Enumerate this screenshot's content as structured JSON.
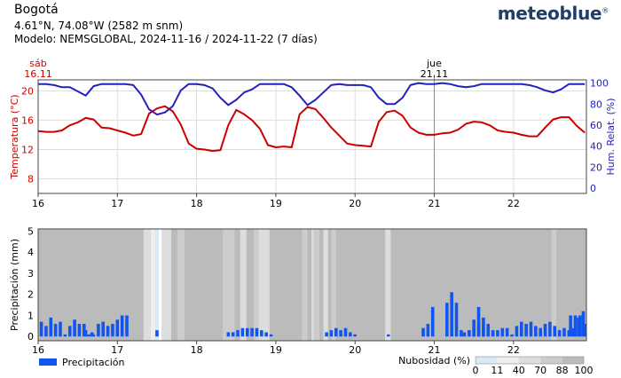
{
  "header": {
    "location": "Bogotá",
    "coords": "4.61°N, 74.08°W (2582 m snm)",
    "model": "Modelo: NEMSGLOBAL, 2024-11-16 / 2024-11-22 (7 días)",
    "brand": "meteoblue",
    "brand_mark": "®"
  },
  "colors": {
    "temperature": "#cc0000",
    "humidity": "#2222bb",
    "precipitation": "#1155ee",
    "cloud_base": "#bbbbbb"
  },
  "chart_data": [
    {
      "type": "line",
      "day_markers": [
        {
          "day_name": "sáb",
          "date": "16.11",
          "x": 16
        },
        {
          "day_name": "jue",
          "date": "21.11",
          "x": 21
        }
      ],
      "x": [
        16.0,
        16.1,
        16.2,
        16.3,
        16.4,
        16.5,
        16.6,
        16.7,
        16.8,
        16.9,
        17.0,
        17.1,
        17.2,
        17.3,
        17.4,
        17.5,
        17.6,
        17.7,
        17.8,
        17.9,
        18.0,
        18.1,
        18.2,
        18.3,
        18.4,
        18.5,
        18.6,
        18.7,
        18.8,
        18.9,
        19.0,
        19.1,
        19.2,
        19.3,
        19.4,
        19.5,
        19.6,
        19.7,
        19.8,
        19.9,
        20.0,
        20.1,
        20.2,
        20.3,
        20.4,
        20.5,
        20.6,
        20.7,
        20.8,
        20.9,
        21.0,
        21.1,
        21.2,
        21.3,
        21.4,
        21.5,
        21.6,
        21.7,
        21.8,
        21.9,
        22.0,
        22.1,
        22.2,
        22.3,
        22.4,
        22.5,
        22.6,
        22.7,
        22.8,
        22.9
      ],
      "series": [
        {
          "name": "Temperatura (°C)",
          "axis": "left",
          "values": [
            14.5,
            14.4,
            14.4,
            14.6,
            15.3,
            15.7,
            16.3,
            16.1,
            15.0,
            14.9,
            14.6,
            14.3,
            13.9,
            14.1,
            16.9,
            17.6,
            17.9,
            17.2,
            15.4,
            12.8,
            12.1,
            12.0,
            11.8,
            11.9,
            15.3,
            17.4,
            16.8,
            16.0,
            14.8,
            12.6,
            12.3,
            12.4,
            12.3,
            16.8,
            17.8,
            17.5,
            16.3,
            15.0,
            13.9,
            12.8,
            12.6,
            12.5,
            12.4,
            15.8,
            17.1,
            17.3,
            16.6,
            15.0,
            14.3,
            14.0,
            14.0,
            14.2,
            14.3,
            14.7,
            15.5,
            15.8,
            15.7,
            15.3,
            14.6,
            14.4,
            14.3,
            14.0,
            13.8,
            13.8,
            15.0,
            16.1,
            16.4,
            16.4,
            15.2,
            14.3
          ]
        },
        {
          "name": "Hum. Relat. (%)",
          "axis": "right",
          "values": [
            99,
            99,
            98,
            96,
            96,
            92,
            88,
            97,
            99,
            99,
            99,
            99,
            98,
            89,
            75,
            70,
            72,
            78,
            93,
            99,
            99,
            98,
            95,
            86,
            79,
            84,
            91,
            94,
            99,
            99,
            99,
            99,
            96,
            88,
            79,
            84,
            91,
            98,
            99,
            98,
            98,
            98,
            96,
            86,
            80,
            80,
            86,
            98,
            100,
            99,
            99,
            100,
            99,
            97,
            96,
            97,
            99,
            99,
            99,
            99,
            99,
            99,
            98,
            96,
            93,
            91,
            94,
            99,
            99,
            99
          ]
        }
      ],
      "xlim": [
        16,
        22.92
      ],
      "x_ticks": [
        16,
        17,
        18,
        19,
        20,
        21,
        22
      ],
      "y_left": {
        "label": "Temperatura (°C)",
        "lim": [
          6,
          21.5
        ],
        "ticks": [
          8,
          12,
          16,
          20
        ]
      },
      "y_right": {
        "label": "Hum. Relat. (%)",
        "lim": [
          -5,
          103
        ],
        "ticks": [
          0,
          20,
          40,
          60,
          80,
          100
        ]
      }
    },
    {
      "type": "bar",
      "x": [
        16.04,
        16.1,
        16.16,
        16.22,
        16.28,
        16.34,
        16.4,
        16.46,
        16.52,
        16.58,
        16.64,
        16.7,
        16.76,
        16.82,
        16.88,
        16.94,
        17.0,
        17.06,
        17.12,
        18.4,
        18.46,
        18.52,
        18.58,
        18.64,
        18.7,
        18.76,
        18.82,
        18.88,
        18.94,
        19.64,
        19.7,
        19.76,
        19.82,
        19.88,
        19.94,
        20.0,
        20.42,
        20.86,
        20.92,
        20.98,
        21.38,
        21.44,
        21.5,
        21.56,
        21.62,
        21.68,
        21.74,
        21.8,
        21.86,
        21.92,
        21.98,
        22.04,
        22.1,
        22.16,
        22.22,
        22.28,
        22.34,
        22.4,
        22.46,
        22.52,
        22.58,
        22.64,
        22.7,
        22.76,
        22.82,
        22.88,
        22.94,
        23.0,
        23.06
      ],
      "values": [
        0.7,
        0.5,
        0.9,
        0.6,
        0.7,
        0.1,
        0.5,
        0.8,
        0.6,
        0.6,
        0.1,
        0.1,
        0.6,
        0.7,
        0.5,
        0.6,
        0.8,
        1.0,
        1.0,
        0.2,
        0.2,
        0.3,
        0.4,
        0.4,
        0.4,
        0.4,
        0.3,
        0.2,
        0.1,
        0.2,
        0.3,
        0.4,
        0.3,
        0.4,
        0.2,
        0.1,
        0.1,
        0.4,
        0.6,
        1.4,
        0.2,
        0.3,
        0.8,
        1.4,
        0.9,
        0.6,
        0.3,
        0.3,
        0.4,
        0.4,
        0.1,
        0.5,
        0.7,
        0.6,
        0.7,
        0.5,
        0.4,
        0.6,
        0.7,
        0.5,
        0.3,
        0.4,
        0.3,
        0.4,
        0.9,
        1.2,
        0.5,
        0.2,
        0.3
      ],
      "extra_bars": {
        "x": [
          16.6,
          16.68,
          17.5,
          21.16,
          21.22,
          21.28,
          21.34,
          21.5,
          21.56,
          21.62,
          22.72,
          22.78,
          22.84,
          22.9
        ],
        "values": [
          0.3,
          0.2,
          0.3,
          1.6,
          2.1,
          1.6,
          0.3,
          0.4,
          0.6,
          0.3,
          1.0,
          1.0,
          1.0,
          0.6
        ]
      },
      "cloud_bands": [
        {
          "x0": 17.33,
          "x1": 17.42,
          "cover": 70
        },
        {
          "x0": 17.42,
          "x1": 17.48,
          "cover": 40
        },
        {
          "x0": 17.48,
          "x1": 17.52,
          "cover": 11
        },
        {
          "x0": 17.52,
          "x1": 17.56,
          "cover": 0
        },
        {
          "x0": 17.56,
          "x1": 17.68,
          "cover": 70
        },
        {
          "x0": 17.76,
          "x1": 17.85,
          "cover": 88
        },
        {
          "x0": 18.33,
          "x1": 18.48,
          "cover": 88
        },
        {
          "x0": 18.55,
          "x1": 18.63,
          "cover": 70
        },
        {
          "x0": 18.72,
          "x1": 18.78,
          "cover": 88
        },
        {
          "x0": 18.78,
          "x1": 18.92,
          "cover": 70
        },
        {
          "x0": 19.33,
          "x1": 19.4,
          "cover": 88
        },
        {
          "x0": 19.45,
          "x1": 19.48,
          "cover": 70
        },
        {
          "x0": 19.48,
          "x1": 19.55,
          "cover": 88
        },
        {
          "x0": 19.6,
          "x1": 19.66,
          "cover": 70
        },
        {
          "x0": 19.7,
          "x1": 19.76,
          "cover": 88
        },
        {
          "x0": 20.38,
          "x1": 20.45,
          "cover": 70
        },
        {
          "x0": 22.48,
          "x1": 22.54,
          "cover": 88
        }
      ],
      "xlim": [
        16,
        22.92
      ],
      "x_ticks": [
        16,
        17,
        18,
        19,
        20,
        21,
        22
      ],
      "ylabel": "Precipitación (mm)",
      "ylim": [
        -0.2,
        5.1
      ],
      "y_ticks": [
        0,
        1,
        2,
        3,
        4,
        5
      ],
      "legend": {
        "label": "Precipitación",
        "placement": "bottom-left"
      },
      "colorbar": {
        "label": "Nubosidad (%)",
        "ticks": [
          "0",
          "11",
          "40",
          "70",
          "88",
          "100"
        ],
        "placement": "bottom-right"
      }
    }
  ]
}
